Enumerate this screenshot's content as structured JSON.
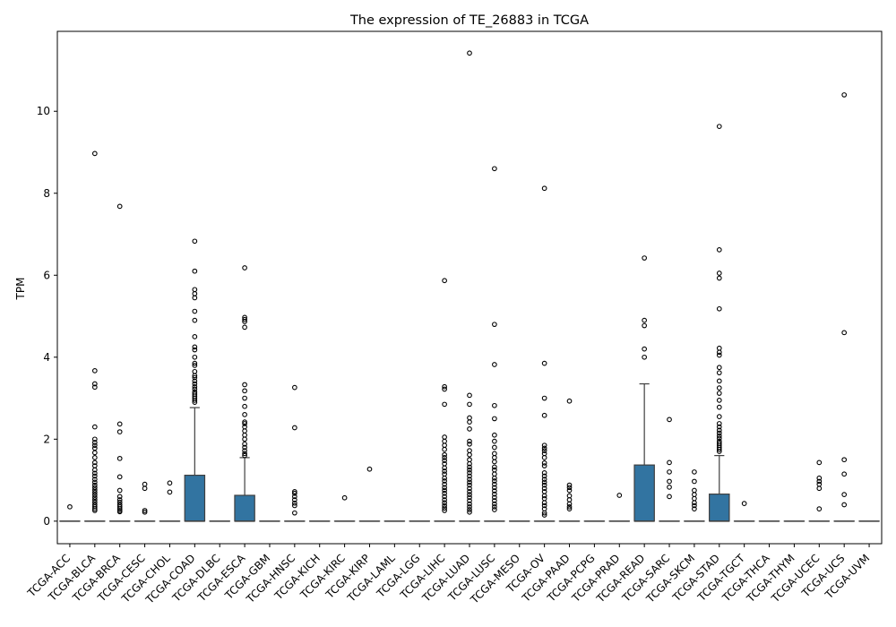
{
  "chart_data": {
    "type": "box",
    "title": "The expression of TE_26883 in TCGA",
    "xlabel": "",
    "ylabel": "TPM",
    "ylim": [
      -0.55,
      11.95
    ],
    "yticks": [
      0,
      2,
      4,
      6,
      8,
      10
    ],
    "grid": false,
    "legend": false,
    "colors": {
      "box_fill": "#3274a1",
      "line": "#3f3f3f",
      "flier_edge": "#000000",
      "axes": "#000000"
    },
    "categories": [
      "TCGA-ACC",
      "TCGA-BLCA",
      "TCGA-BRCA",
      "TCGA-CESC",
      "TCGA-CHOL",
      "TCGA-COAD",
      "TCGA-DLBC",
      "TCGA-ESCA",
      "TCGA-GBM",
      "TCGA-HNSC",
      "TCGA-KICH",
      "TCGA-KIRC",
      "TCGA-KIRP",
      "TCGA-LAML",
      "TCGA-LGG",
      "TCGA-LIHC",
      "TCGA-LUAD",
      "TCGA-LUSC",
      "TCGA-MESO",
      "TCGA-OV",
      "TCGA-PAAD",
      "TCGA-PCPG",
      "TCGA-PRAD",
      "TCGA-READ",
      "TCGA-SARC",
      "TCGA-SKCM",
      "TCGA-STAD",
      "TCGA-TGCT",
      "TCGA-THCA",
      "TCGA-THYM",
      "TCGA-UCEC",
      "TCGA-UCS",
      "TCGA-UVM"
    ],
    "boxes": [
      {
        "q1": 0,
        "median": 0,
        "q3": 0,
        "whisker_low": 0,
        "whisker_high": 0,
        "fliers": [
          0.35
        ]
      },
      {
        "q1": 0,
        "median": 0,
        "q3": 0,
        "whisker_low": 0,
        "whisker_high": 0,
        "fliers": [
          8.97,
          3.67,
          3.35,
          3.27,
          2.3,
          2.0,
          1.92,
          1.85,
          1.78,
          1.67,
          1.55,
          1.43,
          1.35,
          1.25,
          1.17,
          1.1,
          1.02,
          0.95,
          0.88,
          0.82,
          0.76,
          0.7,
          0.64,
          0.58,
          0.52,
          0.46,
          0.4,
          0.35,
          0.3,
          0.26
        ]
      },
      {
        "q1": 0,
        "median": 0,
        "q3": 0,
        "whisker_low": 0,
        "whisker_high": 0,
        "fliers": [
          7.68,
          2.37,
          2.18,
          1.53,
          1.08,
          0.75,
          0.6,
          0.52,
          0.46,
          0.4,
          0.35,
          0.3,
          0.26,
          0.23
        ]
      },
      {
        "q1": 0,
        "median": 0,
        "q3": 0,
        "whisker_low": 0,
        "whisker_high": 0,
        "fliers": [
          0.9,
          0.8,
          0.26,
          0.22
        ]
      },
      {
        "q1": 0,
        "median": 0,
        "q3": 0,
        "whisker_low": 0,
        "whisker_high": 0,
        "fliers": [
          0.93,
          0.71
        ]
      },
      {
        "q1": 0,
        "median": 0,
        "q3": 1.12,
        "whisker_low": 0,
        "whisker_high": 2.77,
        "fliers": [
          6.83,
          6.1,
          5.65,
          5.55,
          5.45,
          5.12,
          4.9,
          4.5,
          4.25,
          4.18,
          4.0,
          3.85,
          3.8,
          3.65,
          3.55,
          3.5,
          3.42,
          3.35,
          3.28,
          3.22,
          3.15,
          3.1,
          3.05,
          3.0,
          2.95,
          2.9
        ]
      },
      {
        "q1": 0,
        "median": 0,
        "q3": 0,
        "whisker_low": 0,
        "whisker_high": 0,
        "fliers": []
      },
      {
        "q1": 0,
        "median": 0,
        "q3": 0.63,
        "whisker_low": 0,
        "whisker_high": 1.55,
        "fliers": [
          6.18,
          4.97,
          4.92,
          4.87,
          4.73,
          3.33,
          3.18,
          3.0,
          2.8,
          2.6,
          2.42,
          2.38,
          2.3,
          2.2,
          2.1,
          2.0,
          1.88,
          1.8,
          1.72,
          1.65,
          1.6
        ]
      },
      {
        "q1": 0,
        "median": 0,
        "q3": 0,
        "whisker_low": 0,
        "whisker_high": 0,
        "fliers": []
      },
      {
        "q1": 0,
        "median": 0,
        "q3": 0,
        "whisker_low": 0,
        "whisker_high": 0,
        "fliers": [
          3.26,
          2.28,
          0.72,
          0.68,
          0.6,
          0.52,
          0.44,
          0.38,
          0.2
        ]
      },
      {
        "q1": 0,
        "median": 0,
        "q3": 0,
        "whisker_low": 0,
        "whisker_high": 0,
        "fliers": []
      },
      {
        "q1": 0,
        "median": 0,
        "q3": 0,
        "whisker_low": 0,
        "whisker_high": 0,
        "fliers": [
          0.57
        ]
      },
      {
        "q1": 0,
        "median": 0,
        "q3": 0,
        "whisker_low": 0,
        "whisker_high": 0,
        "fliers": [
          1.27
        ]
      },
      {
        "q1": 0,
        "median": 0,
        "q3": 0,
        "whisker_low": 0,
        "whisker_high": 0,
        "fliers": []
      },
      {
        "q1": 0,
        "median": 0,
        "q3": 0,
        "whisker_low": 0,
        "whisker_high": 0,
        "fliers": []
      },
      {
        "q1": 0,
        "median": 0,
        "q3": 0,
        "whisker_low": 0,
        "whisker_high": 0,
        "fliers": [
          5.87,
          3.28,
          3.22,
          2.85,
          2.05,
          1.95,
          1.85,
          1.75,
          1.62,
          1.55,
          1.48,
          1.4,
          1.3,
          1.22,
          1.15,
          1.05,
          0.98,
          0.9,
          0.82,
          0.75,
          0.68,
          0.6,
          0.52,
          0.45,
          0.38,
          0.32,
          0.26
        ]
      },
      {
        "q1": 0,
        "median": 0,
        "q3": 0,
        "whisker_low": 0,
        "whisker_high": 0,
        "fliers": [
          11.42,
          3.07,
          2.85,
          2.52,
          2.42,
          2.25,
          1.95,
          1.88,
          1.72,
          1.62,
          1.5,
          1.4,
          1.32,
          1.25,
          1.18,
          1.1,
          1.02,
          0.95,
          0.88,
          0.8,
          0.72,
          0.65,
          0.58,
          0.5,
          0.42,
          0.35,
          0.28,
          0.22
        ]
      },
      {
        "q1": 0,
        "median": 0,
        "q3": 0,
        "whisker_low": 0,
        "whisker_high": 0,
        "fliers": [
          8.6,
          4.8,
          3.82,
          2.82,
          2.5,
          2.1,
          1.95,
          1.8,
          1.65,
          1.55,
          1.45,
          1.32,
          1.25,
          1.15,
          1.05,
          0.98,
          0.9,
          0.82,
          0.74,
          0.66,
          0.58,
          0.5,
          0.42,
          0.35,
          0.28
        ]
      },
      {
        "q1": 0,
        "median": 0,
        "q3": 0,
        "whisker_low": 0,
        "whisker_high": 0,
        "fliers": []
      },
      {
        "q1": 0,
        "median": 0,
        "q3": 0,
        "whisker_low": 0,
        "whisker_high": 0,
        "fliers": [
          8.12,
          3.85,
          3.0,
          2.58,
          1.85,
          1.78,
          1.72,
          1.65,
          1.55,
          1.42,
          1.35,
          1.18,
          1.1,
          1.02,
          0.95,
          0.88,
          0.8,
          0.72,
          0.62,
          0.55,
          0.45,
          0.38,
          0.3,
          0.2,
          0.15
        ]
      },
      {
        "q1": 0,
        "median": 0,
        "q3": 0,
        "whisker_low": 0,
        "whisker_high": 0,
        "fliers": [
          2.93,
          0.88,
          0.82,
          0.75,
          0.62,
          0.52,
          0.42,
          0.35,
          0.3
        ]
      },
      {
        "q1": 0,
        "median": 0,
        "q3": 0,
        "whisker_low": 0,
        "whisker_high": 0,
        "fliers": []
      },
      {
        "q1": 0,
        "median": 0,
        "q3": 0,
        "whisker_low": 0,
        "whisker_high": 0,
        "fliers": [
          0.63
        ]
      },
      {
        "q1": 0,
        "median": 0,
        "q3": 1.37,
        "whisker_low": 0,
        "whisker_high": 3.35,
        "fliers": [
          6.42,
          4.9,
          4.77,
          4.2,
          4.0
        ]
      },
      {
        "q1": 0,
        "median": 0,
        "q3": 0,
        "whisker_low": 0,
        "whisker_high": 0,
        "fliers": [
          2.48,
          1.43,
          1.2,
          0.97,
          0.83,
          0.6
        ]
      },
      {
        "q1": 0,
        "median": 0,
        "q3": 0,
        "whisker_low": 0,
        "whisker_high": 0,
        "fliers": [
          1.2,
          0.97,
          0.75,
          0.65,
          0.55,
          0.45,
          0.38,
          0.3
        ]
      },
      {
        "q1": 0,
        "median": 0,
        "q3": 0.66,
        "whisker_low": 0,
        "whisker_high": 1.6,
        "fliers": [
          9.63,
          6.62,
          6.05,
          5.93,
          5.18,
          4.22,
          4.12,
          4.05,
          3.75,
          3.62,
          3.42,
          3.25,
          3.12,
          2.95,
          2.78,
          2.55,
          2.38,
          2.3,
          2.22,
          2.15,
          2.08,
          2.02,
          1.95,
          1.9,
          1.85,
          1.8,
          1.75,
          1.7
        ]
      },
      {
        "q1": 0,
        "median": 0,
        "q3": 0,
        "whisker_low": 0,
        "whisker_high": 0,
        "fliers": [
          0.43
        ]
      },
      {
        "q1": 0,
        "median": 0,
        "q3": 0,
        "whisker_low": 0,
        "whisker_high": 0,
        "fliers": []
      },
      {
        "q1": 0,
        "median": 0,
        "q3": 0,
        "whisker_low": 0,
        "whisker_high": 0,
        "fliers": []
      },
      {
        "q1": 0,
        "median": 0,
        "q3": 0,
        "whisker_low": 0,
        "whisker_high": 0,
        "fliers": [
          1.43,
          1.05,
          0.97,
          0.9,
          0.8,
          0.3
        ]
      },
      {
        "q1": 0,
        "median": 0,
        "q3": 0,
        "whisker_low": 0,
        "whisker_high": 0,
        "fliers": [
          10.4,
          4.6,
          1.5,
          1.15,
          0.65,
          0.4
        ]
      },
      {
        "q1": 0,
        "median": 0,
        "q3": 0,
        "whisker_low": 0,
        "whisker_high": 0,
        "fliers": []
      }
    ]
  }
}
